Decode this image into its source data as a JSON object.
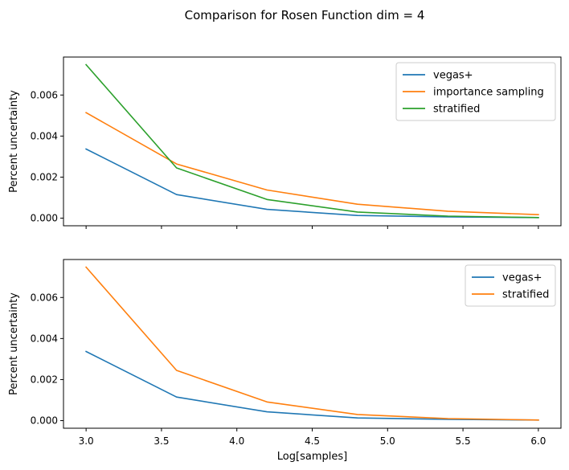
{
  "figure": {
    "title": "Comparison for Rosen Function dim = 4"
  },
  "chart_data": [
    {
      "type": "line",
      "title": "",
      "xlabel": "",
      "ylabel": "Percent uncertainty",
      "x": [
        3.0,
        3.6,
        4.2,
        4.8,
        5.4,
        6.0
      ],
      "xlim": [
        2.85,
        6.15
      ],
      "ylim": [
        -0.00037,
        0.00785
      ],
      "xticks": [
        3.0,
        3.5,
        4.0,
        4.5,
        5.0,
        5.5,
        6.0
      ],
      "xtick_labels_visible": false,
      "yticks": [
        0.0,
        0.002,
        0.004,
        0.006
      ],
      "ytick_labels": [
        "0.000",
        "0.002",
        "0.004",
        "0.006"
      ],
      "grid": false,
      "legend_position": "upper-right",
      "series": [
        {
          "name": "vegas+",
          "color": "#1f77b4",
          "values": [
            0.00337,
            0.00115,
            0.00043,
            0.00013,
            6e-05,
            3e-05
          ]
        },
        {
          "name": "importance sampling",
          "color": "#ff7f0e",
          "values": [
            0.00514,
            0.00264,
            0.00137,
            0.00068,
            0.00034,
            0.00017
          ]
        },
        {
          "name": "stratified",
          "color": "#2ca02c",
          "values": [
            0.00748,
            0.00245,
            0.00091,
            0.0003,
            0.0001,
            3e-05
          ]
        }
      ]
    },
    {
      "type": "line",
      "title": "",
      "xlabel": "Log[samples]",
      "ylabel": "Percent uncertainty",
      "x": [
        3.0,
        3.6,
        4.2,
        4.8,
        5.4,
        6.0
      ],
      "xlim": [
        2.85,
        6.15
      ],
      "ylim": [
        -0.00037,
        0.00785
      ],
      "xticks": [
        3.0,
        3.5,
        4.0,
        4.5,
        5.0,
        5.5,
        6.0
      ],
      "xtick_labels": [
        "3.0",
        "3.5",
        "4.0",
        "4.5",
        "5.0",
        "5.5",
        "6.0"
      ],
      "xtick_labels_visible": true,
      "yticks": [
        0.0,
        0.002,
        0.004,
        0.006
      ],
      "ytick_labels": [
        "0.000",
        "0.002",
        "0.004",
        "0.006"
      ],
      "grid": false,
      "legend_position": "upper-right",
      "series": [
        {
          "name": "vegas+",
          "color": "#1f77b4",
          "values": [
            0.00337,
            0.00115,
            0.00043,
            0.00013,
            6e-05,
            3e-05
          ]
        },
        {
          "name": "stratified",
          "color": "#ff7f0e",
          "values": [
            0.00748,
            0.00245,
            0.00091,
            0.0003,
            0.0001,
            3e-05
          ]
        }
      ]
    }
  ]
}
